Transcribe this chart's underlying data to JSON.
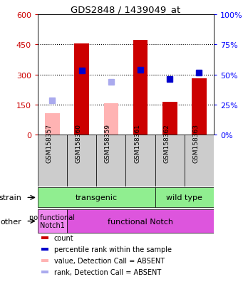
{
  "title": "GDS2848 / 1439049_at",
  "samples": [
    "GSM158357",
    "GSM158360",
    "GSM158359",
    "GSM158361",
    "GSM158362",
    "GSM158363"
  ],
  "red_bars": [
    null,
    453,
    null,
    470,
    163,
    280
  ],
  "pink_bars": [
    107,
    null,
    157,
    null,
    null,
    null
  ],
  "blue_squares": [
    null,
    320,
    null,
    323,
    278,
    308
  ],
  "light_blue_squares": [
    170,
    null,
    263,
    null,
    null,
    null
  ],
  "ylim_left": [
    0,
    600
  ],
  "yticks_left": [
    0,
    150,
    300,
    450,
    600
  ],
  "ytick_labels_left": [
    "0",
    "150",
    "300",
    "450",
    "600"
  ],
  "yticks_right": [
    0,
    150,
    300,
    450,
    600
  ],
  "ytick_labels_right": [
    "0%",
    "25%",
    "50%",
    "75%",
    "100%"
  ],
  "grid_lines": [
    150,
    300,
    450
  ],
  "red_color": "#CC0000",
  "pink_color": "#FFB3B3",
  "blue_color": "#0000CC",
  "light_blue_color": "#AAAAEE",
  "bar_width": 0.5,
  "transgenic_color": "#90EE90",
  "wildtype_color": "#66DD66",
  "nofunc_color": "#EE88EE",
  "func_color": "#DD55DD",
  "legend_items": [
    {
      "label": "count",
      "color": "#CC0000"
    },
    {
      "label": "percentile rank within the sample",
      "color": "#0000CC"
    },
    {
      "label": "value, Detection Call = ABSENT",
      "color": "#FFB3B3"
    },
    {
      "label": "rank, Detection Call = ABSENT",
      "color": "#AAAAEE"
    }
  ]
}
